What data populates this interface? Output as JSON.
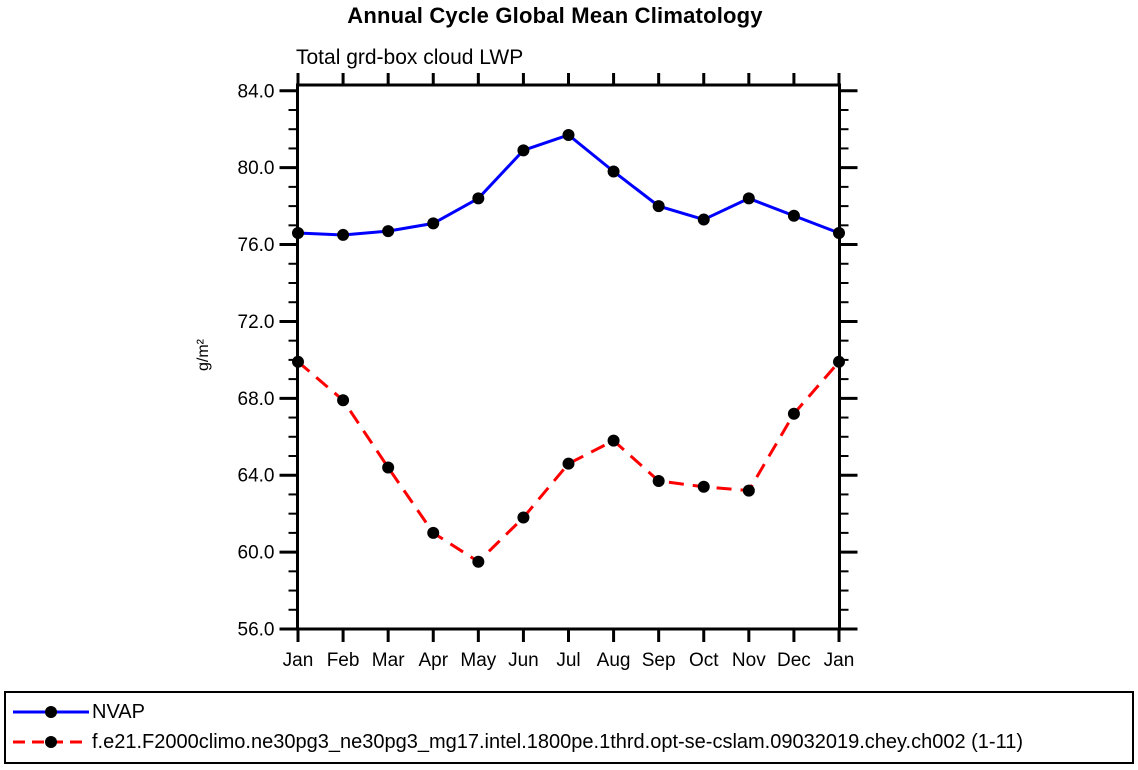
{
  "figure_title": "Annual Cycle Global Mean Climatology",
  "panel_title": "Total grd-box cloud LWP",
  "y_axis_label": "g/m²",
  "colors": {
    "obs_line": "#0000ff",
    "model_line": "#ff0000",
    "marker": "#000000",
    "axis": "#000000",
    "background": "#ffffff"
  },
  "chart_data": {
    "type": "line",
    "title": "Annual Cycle Global Mean Climatology",
    "subtitle": "Total grd-box cloud LWP",
    "xlabel": "",
    "ylabel": "g/m²",
    "categories": [
      "Jan",
      "Feb",
      "Mar",
      "Apr",
      "May",
      "Jun",
      "Jul",
      "Aug",
      "Sep",
      "Oct",
      "Nov",
      "Dec",
      "Jan"
    ],
    "ylim": [
      56,
      84.3
    ],
    "yticks": [
      56,
      60,
      64,
      68,
      72,
      76,
      80,
      84
    ],
    "ytick_labels": [
      "56.0",
      "60.0",
      "64.0",
      "68.0",
      "72.0",
      "76.0",
      "80.0",
      "84.0"
    ],
    "minor_tick_interval": 1,
    "grid": false,
    "legend_position": "bottom-outside-box",
    "series": [
      {
        "name": "NVAP",
        "color": "#0000ff",
        "line_style": "solid",
        "marker": "filled-circle",
        "marker_color": "#000000",
        "values": [
          76.6,
          76.5,
          76.7,
          77.1,
          78.4,
          80.9,
          81.7,
          79.8,
          78.0,
          77.3,
          78.4,
          77.5,
          76.6
        ]
      },
      {
        "name": "f.e21.F2000climo.ne30pg3_ne30pg3_mg17.intel.1800pe.1thrd.opt-se-cslam.09032019.chey.ch002 (1-11)",
        "color": "#ff0000",
        "line_style": "dashed",
        "marker": "filled-circle",
        "marker_color": "#000000",
        "values": [
          69.9,
          67.9,
          64.4,
          61.0,
          59.5,
          61.8,
          64.6,
          65.8,
          63.7,
          63.4,
          63.2,
          67.2,
          69.9
        ]
      }
    ]
  }
}
